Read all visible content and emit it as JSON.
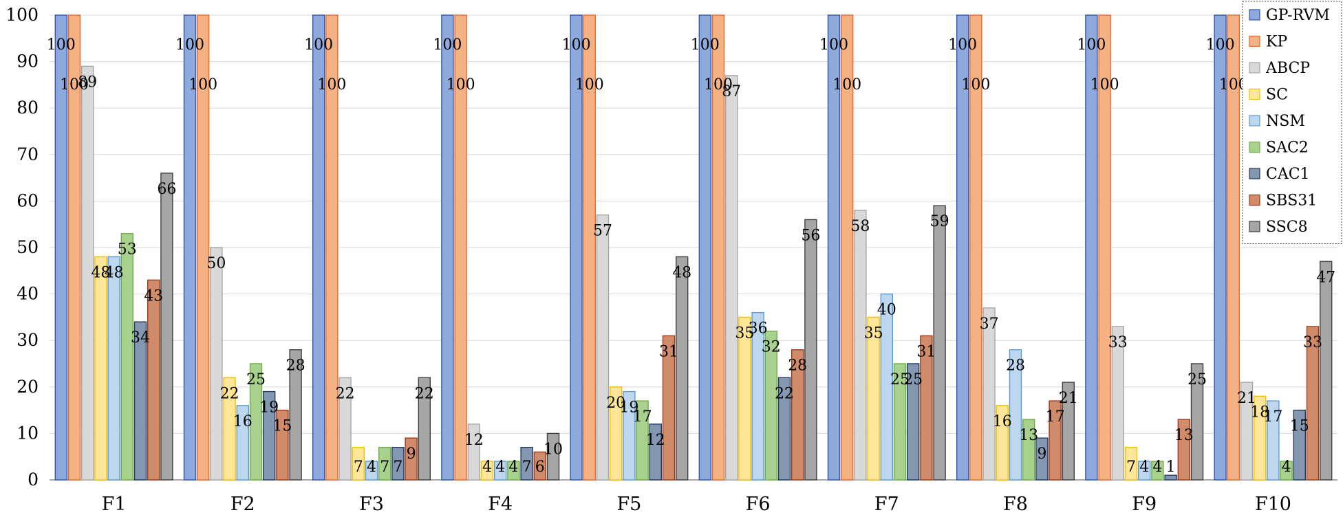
{
  "chart_data": {
    "type": "bar",
    "ylim": [
      0,
      100
    ],
    "yticks": [
      0,
      10,
      20,
      30,
      40,
      50,
      60,
      70,
      80,
      90,
      100
    ],
    "grid": true,
    "legend_position": "top-right",
    "categories": [
      "F1",
      "F2",
      "F3",
      "F4",
      "F5",
      "F6",
      "F7",
      "F8",
      "F9",
      "F10"
    ],
    "series": [
      {
        "name": "GP-RVM",
        "color": "#8EA9DB",
        "stroke": "#2F55B5",
        "values": [
          100,
          100,
          100,
          100,
          100,
          100,
          100,
          100,
          100,
          100
        ]
      },
      {
        "name": "KP",
        "color": "#F4B183",
        "stroke": "#E96A2C",
        "values": [
          100,
          100,
          100,
          100,
          100,
          100,
          100,
          100,
          100,
          100
        ]
      },
      {
        "name": "ABCP",
        "color": "#D9D9D9",
        "stroke": "#A6A6A6",
        "values": [
          89,
          50,
          22,
          12,
          57,
          87,
          58,
          37,
          33,
          21
        ]
      },
      {
        "name": "SC",
        "color": "#FFE699",
        "stroke": "#F2C100",
        "values": [
          48,
          22,
          7,
          4,
          20,
          35,
          35,
          16,
          7,
          18
        ]
      },
      {
        "name": "NSM",
        "color": "#BDD7EE",
        "stroke": "#5B9BD5",
        "values": [
          48,
          16,
          4,
          4,
          19,
          36,
          40,
          28,
          4,
          17
        ]
      },
      {
        "name": "SAC2",
        "color": "#A9D18E",
        "stroke": "#70AD47",
        "values": [
          53,
          25,
          7,
          4,
          17,
          32,
          25,
          13,
          4,
          4
        ]
      },
      {
        "name": "CAC1",
        "color": "#8497B0",
        "stroke": "#223A63",
        "values": [
          34,
          19,
          7,
          7,
          12,
          22,
          25,
          9,
          1,
          15
        ]
      },
      {
        "name": "SBS31",
        "color": "#D08B6B",
        "stroke": "#9C3C1B",
        "values": [
          43,
          15,
          9,
          6,
          31,
          28,
          31,
          17,
          13,
          33
        ]
      },
      {
        "name": "SSC8",
        "color": "#A6A6A6",
        "stroke": "#404040",
        "values": [
          66,
          28,
          22,
          10,
          48,
          56,
          59,
          21,
          25,
          47
        ]
      }
    ]
  }
}
